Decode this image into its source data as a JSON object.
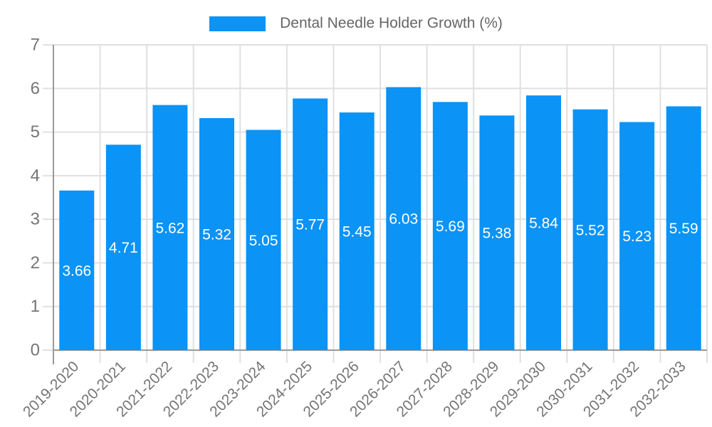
{
  "chart_data": {
    "type": "bar",
    "legend": "Dental Needle Holder Growth (%)",
    "legend_position": "top-center",
    "categories": [
      "2019-2020",
      "2020-2021",
      "2021-2022",
      "2022-2023",
      "2023-2024",
      "2024-2025",
      "2025-2026",
      "2026-2027",
      "2027-2028",
      "2028-2029",
      "2029-2030",
      "2030-2031",
      "2031-2032",
      "2032-2033"
    ],
    "values": [
      3.66,
      4.71,
      5.62,
      5.32,
      5.05,
      5.77,
      5.45,
      6.03,
      5.69,
      5.38,
      5.84,
      5.52,
      5.23,
      5.59
    ],
    "yticks": [
      0,
      1,
      2,
      3,
      4,
      5,
      6,
      7
    ],
    "ylim": [
      0,
      7
    ],
    "xlabel": "",
    "ylabel": "",
    "grid": true,
    "bar_color": "#0b93f6",
    "value_label_color": "#ffffff",
    "grid_color": "#e0e0e0",
    "axis_color": "#9a9a9a",
    "tick_label_color": "#757575",
    "legend_text_color": "#666666"
  }
}
